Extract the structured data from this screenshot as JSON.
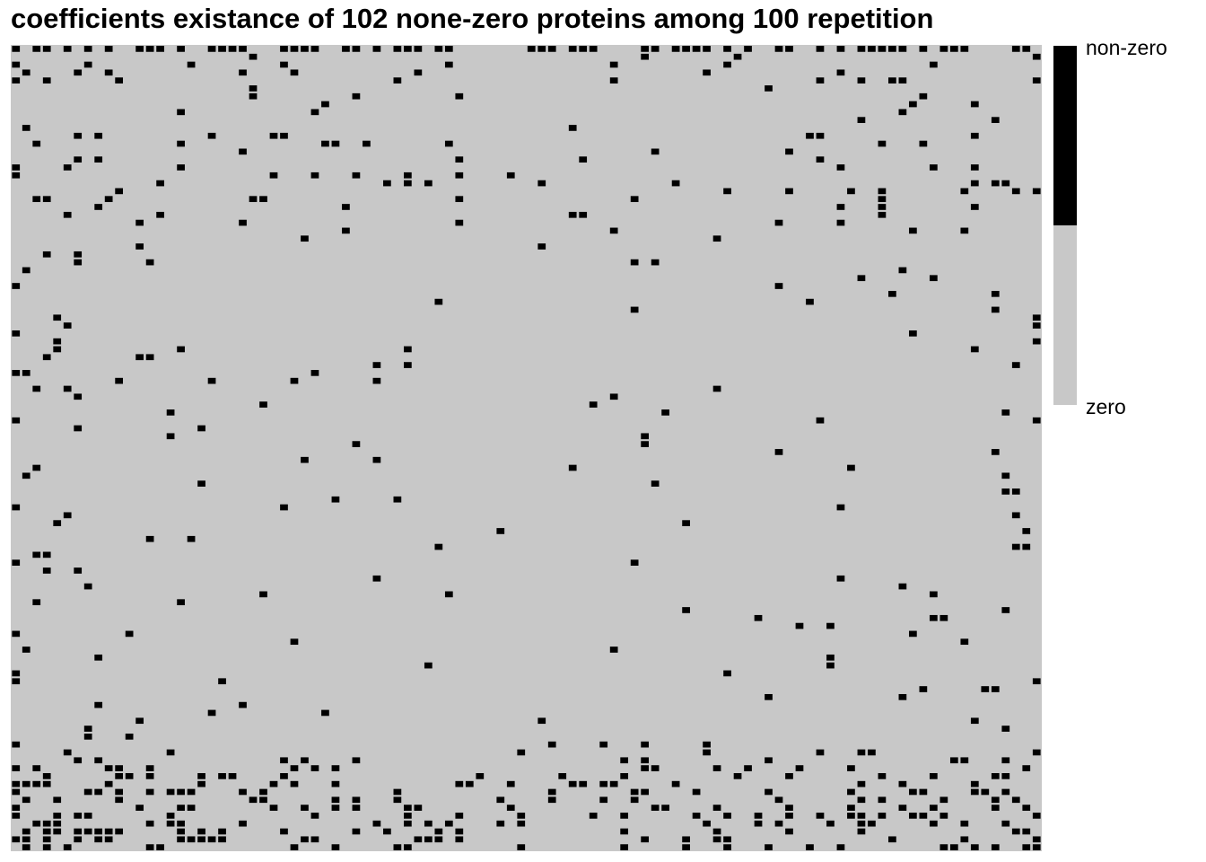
{
  "chart_data": {
    "type": "heatmap",
    "title": "coefficients existance of 102 none-zero proteins among 100 repetition",
    "n_rows": 102,
    "n_cols": 100,
    "legend": {
      "labels": [
        "non-zero",
        "zero"
      ],
      "colors": {
        "non-zero": "#000000",
        "zero": "#c8c8c8"
      }
    },
    "grid": false,
    "nonzero_row_counts": [
      50,
      4,
      8,
      8,
      10,
      2,
      4,
      3,
      3,
      2,
      2,
      8,
      8,
      3,
      5,
      6,
      7,
      9,
      8,
      8,
      5,
      5,
      5,
      4,
      2,
      2,
      2,
      4,
      2,
      2,
      2,
      2,
      2,
      2,
      2,
      2,
      2,
      2,
      4,
      3,
      3,
      3,
      4,
      3,
      2,
      2,
      3,
      3,
      2,
      2,
      2,
      2,
      2,
      3,
      2,
      2,
      2,
      2,
      3,
      2,
      2,
      2,
      2,
      3,
      2,
      2,
      2,
      2,
      2,
      3,
      2,
      2,
      3,
      2,
      3,
      2,
      2,
      2,
      2,
      2,
      3,
      3,
      2,
      2,
      2,
      3,
      2,
      2,
      5,
      8,
      11,
      15,
      17,
      20,
      22,
      18,
      20,
      23,
      22,
      22,
      24,
      22
    ]
  }
}
